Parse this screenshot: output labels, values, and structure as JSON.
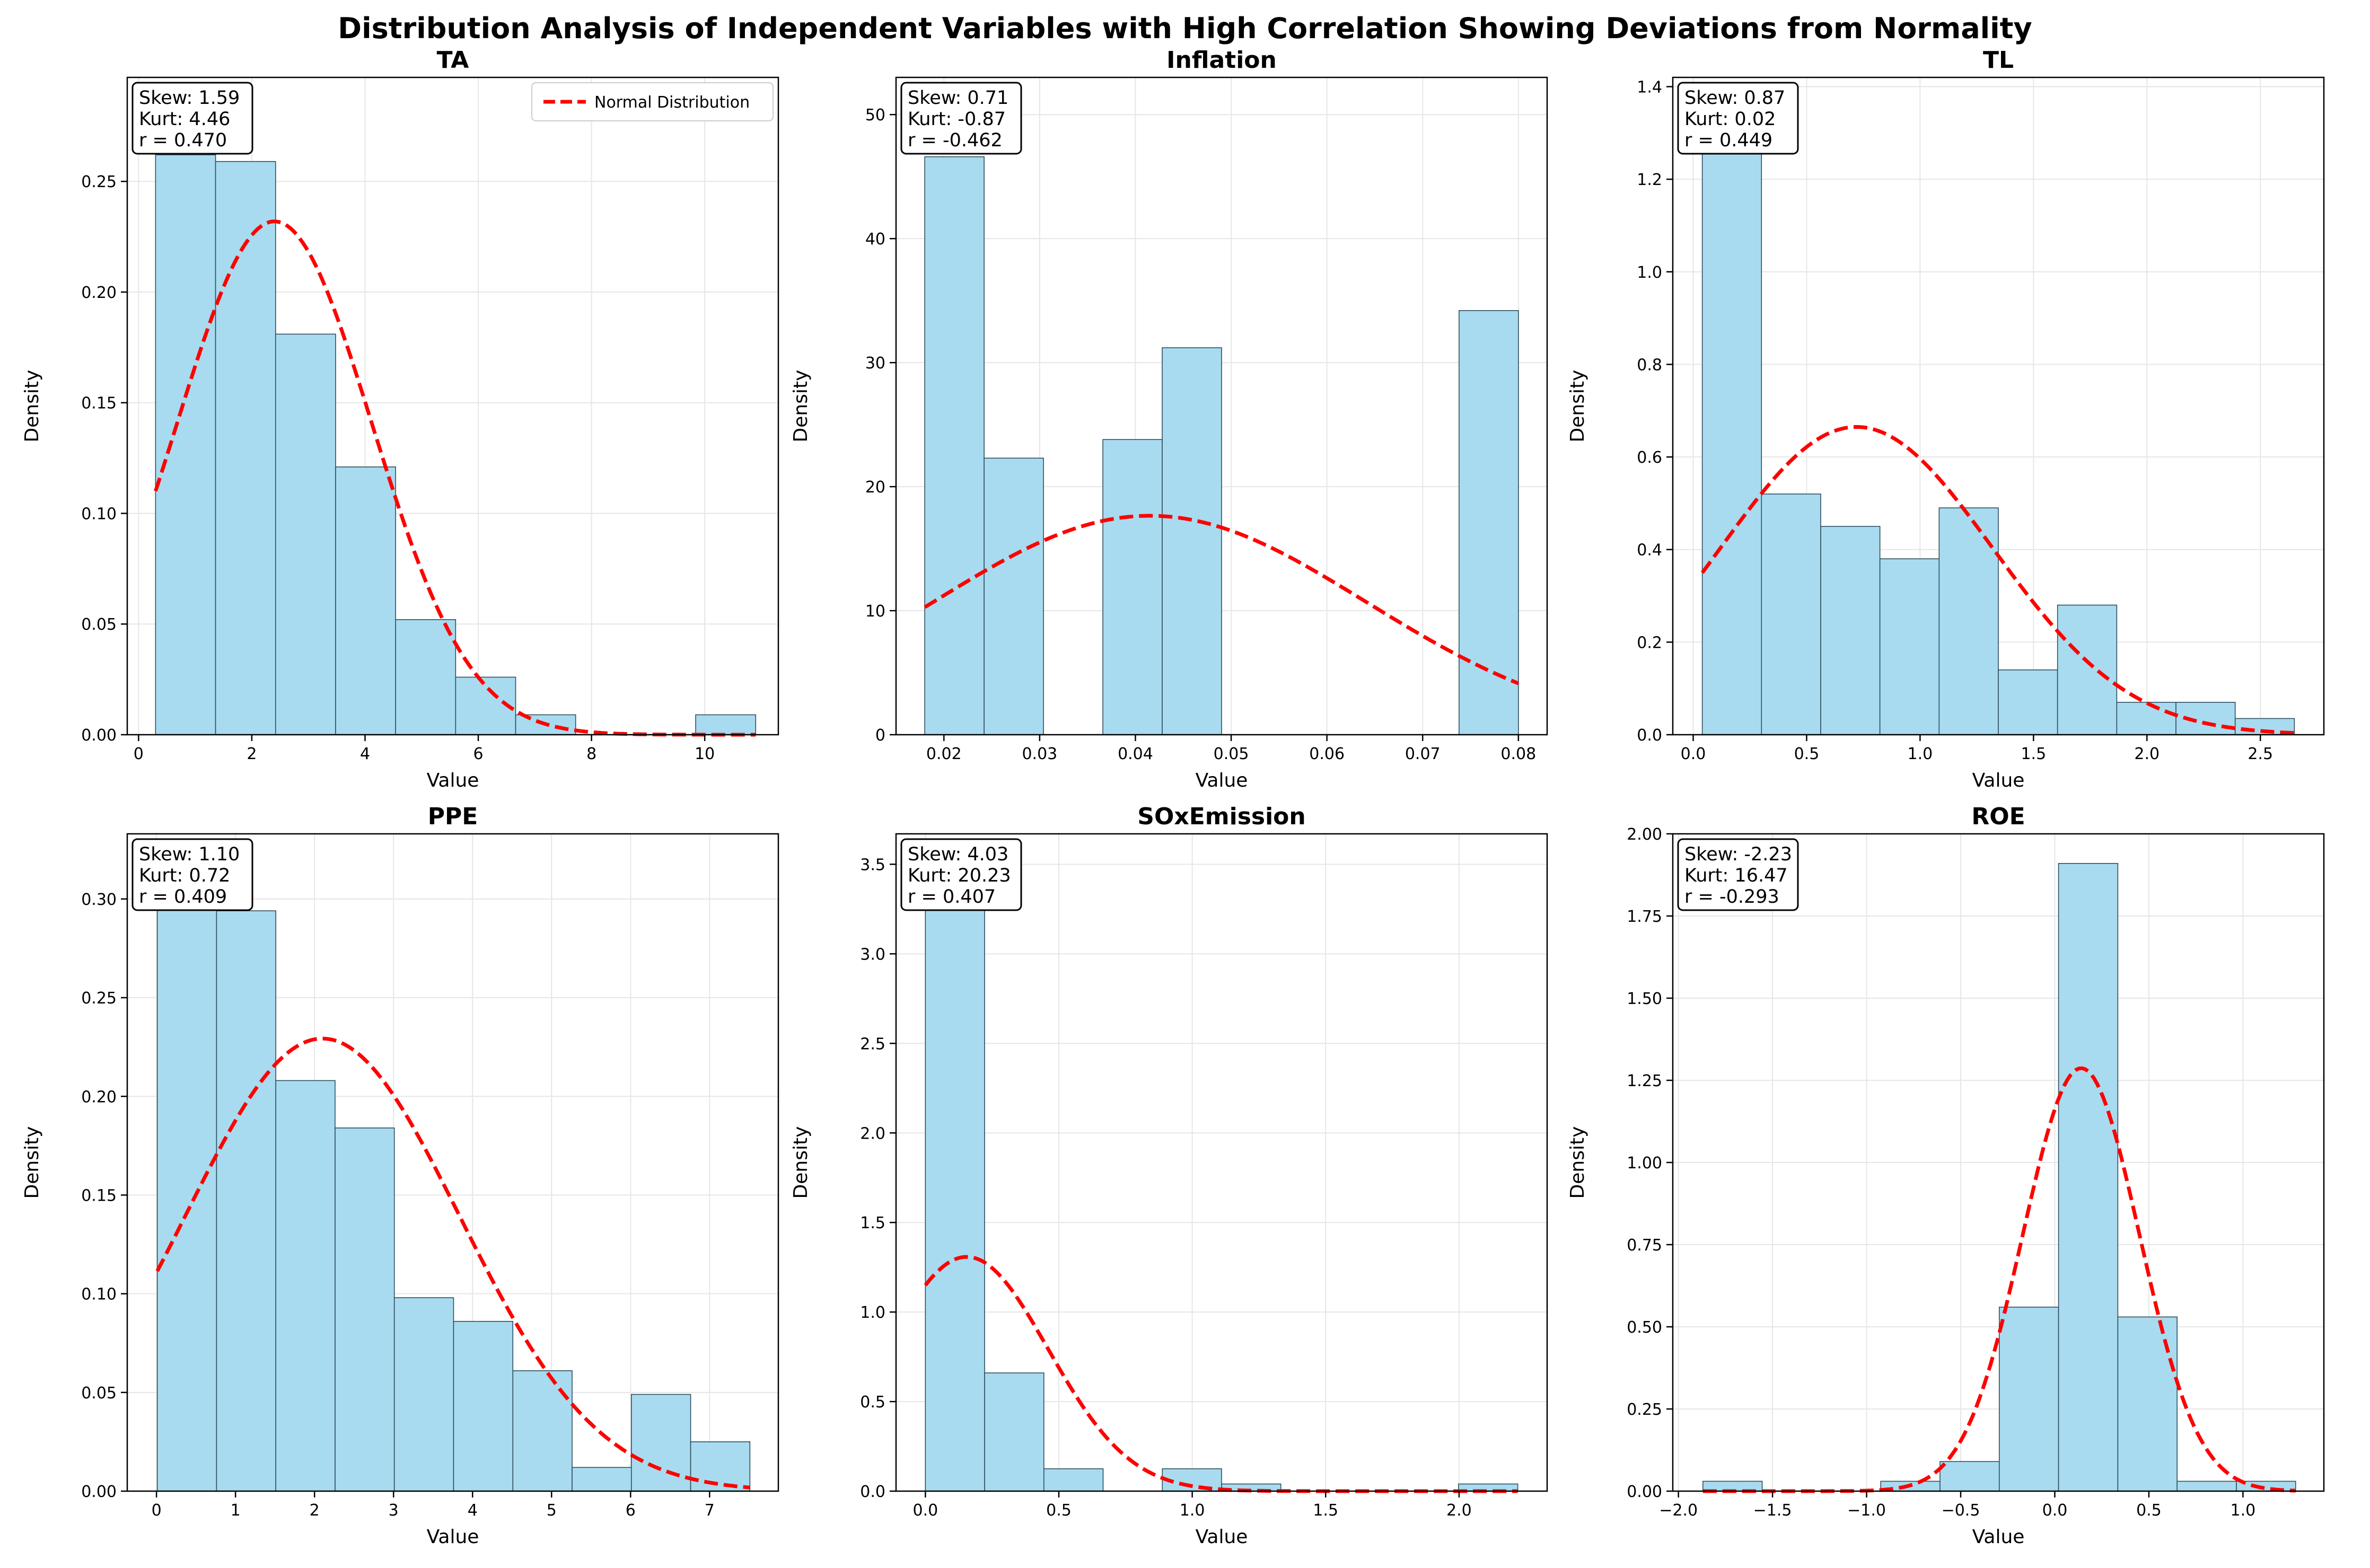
{
  "title": "Distribution Analysis of Independent Variables with High Correlation Showing Deviations from Normality",
  "colors": {
    "bar_fill": "#a8dbef",
    "bar_edge": "#2f4f5f",
    "normal_curve": "#ff0000",
    "grid": "#e6e6e6"
  },
  "legend": {
    "label": "Normal Distribution",
    "placement": "top-right",
    "panel": 0
  },
  "chart_data": [
    {
      "type": "bar",
      "title": "TA",
      "xlabel": "Value",
      "ylabel": "Density",
      "xlim": [
        -0.2,
        11.3
      ],
      "ylim": [
        0,
        0.297
      ],
      "xticks": [
        0,
        2,
        4,
        6,
        8,
        10
      ],
      "xtick_labels": [
        "0",
        "2",
        "4",
        "6",
        "8",
        "10"
      ],
      "yticks": [
        0,
        0.05,
        0.1,
        0.15,
        0.2,
        0.25
      ],
      "ytick_labels": [
        "0.00",
        "0.05",
        "0.10",
        "0.15",
        "0.20",
        "0.25"
      ],
      "bin_edges": [
        0.3,
        1.36,
        2.42,
        3.48,
        4.54,
        5.6,
        6.66,
        7.72,
        8.78,
        9.84,
        10.9
      ],
      "densities": [
        0.262,
        0.259,
        0.181,
        0.121,
        0.052,
        0.026,
        0.009,
        0,
        0,
        0.009
      ],
      "normal": {
        "mean": 2.4,
        "std": 1.72
      },
      "stats": {
        "skew": "Skew: 1.59",
        "kurt": "Kurt: 4.46",
        "r": "r = 0.470"
      }
    },
    {
      "type": "bar",
      "title": "Inflation",
      "xlabel": "Value",
      "ylabel": "Density",
      "xlim": [
        0.015,
        0.083
      ],
      "ylim": [
        0,
        53
      ],
      "xticks": [
        0.02,
        0.03,
        0.04,
        0.05,
        0.06,
        0.07,
        0.08
      ],
      "xtick_labels": [
        "0.02",
        "0.03",
        "0.04",
        "0.05",
        "0.06",
        "0.07",
        "0.08"
      ],
      "yticks": [
        0,
        10,
        20,
        30,
        40,
        50
      ],
      "ytick_labels": [
        "0",
        "10",
        "20",
        "30",
        "40",
        "50"
      ],
      "bin_edges": [
        0.018,
        0.0242,
        0.0304,
        0.0366,
        0.0428,
        0.049,
        0.0552,
        0.0614,
        0.0676,
        0.0738,
        0.08
      ],
      "densities": [
        46.6,
        22.3,
        0,
        23.8,
        31.2,
        0,
        0,
        0,
        0,
        34.2
      ],
      "normal": {
        "mean": 0.0415,
        "std": 0.0226
      },
      "stats": {
        "skew": "Skew: 0.71",
        "kurt": "Kurt: -0.87",
        "r": "r = -0.462"
      }
    },
    {
      "type": "bar",
      "title": "TL",
      "xlabel": "Value",
      "ylabel": "Density",
      "xlim": [
        -0.09,
        2.78
      ],
      "ylim": [
        0,
        1.42
      ],
      "xticks": [
        0,
        0.5,
        1,
        1.5,
        2,
        2.5
      ],
      "xtick_labels": [
        "0.0",
        "0.5",
        "1.0",
        "1.5",
        "2.0",
        "2.5"
      ],
      "yticks": [
        0,
        0.2,
        0.4,
        0.6,
        0.8,
        1,
        1.2,
        1.4
      ],
      "ytick_labels": [
        "0.0",
        "0.2",
        "0.4",
        "0.6",
        "0.8",
        "1.0",
        "1.2",
        "1.4"
      ],
      "bin_edges": [
        0.04,
        0.301,
        0.562,
        0.823,
        1.084,
        1.345,
        1.606,
        1.867,
        2.128,
        2.389,
        2.65
      ],
      "densities": [
        1.26,
        0.52,
        0.45,
        0.38,
        0.49,
        0.14,
        0.28,
        0.07,
        0.07,
        0.035
      ],
      "normal": {
        "mean": 0.72,
        "std": 0.6
      },
      "stats": {
        "skew": "Skew: 0.87",
        "kurt": "Kurt: 0.02",
        "r": "r = 0.449"
      }
    },
    {
      "type": "bar",
      "title": "PPE",
      "xlabel": "Value",
      "ylabel": "Density",
      "xlim": [
        -0.37,
        7.87
      ],
      "ylim": [
        0,
        0.333
      ],
      "xticks": [
        0,
        1,
        2,
        3,
        4,
        5,
        6,
        7
      ],
      "xtick_labels": [
        "0",
        "1",
        "2",
        "3",
        "4",
        "5",
        "6",
        "7"
      ],
      "yticks": [
        0,
        0.05,
        0.1,
        0.15,
        0.2,
        0.25,
        0.3
      ],
      "ytick_labels": [
        "0.00",
        "0.05",
        "0.10",
        "0.15",
        "0.20",
        "0.25",
        "0.30"
      ],
      "bin_edges": [
        0.01,
        0.76,
        1.51,
        2.26,
        3.01,
        3.76,
        4.51,
        5.26,
        6.01,
        6.76,
        7.51
      ],
      "densities": [
        0.301,
        0.294,
        0.208,
        0.184,
        0.098,
        0.086,
        0.061,
        0.012,
        0.049,
        0.025
      ],
      "normal": {
        "mean": 2.1,
        "std": 1.74
      },
      "stats": {
        "skew": "Skew: 1.10",
        "kurt": "Kurt: 0.72",
        "r": "r = 0.409"
      }
    },
    {
      "type": "bar",
      "title": "SOxEmission",
      "xlabel": "Value",
      "ylabel": "Density",
      "xlim": [
        -0.11,
        2.33
      ],
      "ylim": [
        0,
        3.67
      ],
      "xticks": [
        0,
        0.5,
        1,
        1.5,
        2
      ],
      "xtick_labels": [
        "0.0",
        "0.5",
        "1.0",
        "1.5",
        "2.0"
      ],
      "yticks": [
        0,
        0.5,
        1,
        1.5,
        2,
        2.5,
        3,
        3.5
      ],
      "ytick_labels": [
        "0.0",
        "0.5",
        "1.0",
        "1.5",
        "2.0",
        "2.5",
        "3.0",
        "3.5"
      ],
      "bin_edges": [
        0,
        0.222,
        0.444,
        0.666,
        0.888,
        1.11,
        1.332,
        1.554,
        1.776,
        1.998,
        2.22
      ],
      "densities": [
        3.4,
        0.66,
        0.125,
        0,
        0.125,
        0.04,
        0,
        0,
        0,
        0.04
      ],
      "normal": {
        "mean": 0.155,
        "std": 0.305
      },
      "stats": {
        "skew": "Skew: 4.03",
        "kurt": "Kurt: 20.23",
        "r": "r = 0.407"
      }
    },
    {
      "type": "bar",
      "title": "ROE",
      "xlabel": "Value",
      "ylabel": "Density",
      "xlim": [
        -2.03,
        1.43
      ],
      "ylim": [
        0,
        2.0
      ],
      "xticks": [
        -2,
        -1.5,
        -1,
        -0.5,
        0,
        0.5,
        1
      ],
      "xtick_labels": [
        "−2.0",
        "−1.5",
        "−1.0",
        "−0.5",
        "0.0",
        "0.5",
        "1.0"
      ],
      "yticks": [
        0,
        0.25,
        0.5,
        0.75,
        1,
        1.25,
        1.5,
        1.75,
        2
      ],
      "ytick_labels": [
        "0.00",
        "0.25",
        "0.50",
        "0.75",
        "1.00",
        "1.25",
        "1.50",
        "1.75",
        "2.00"
      ],
      "bin_edges": [
        -1.87,
        -1.555,
        -1.24,
        -0.925,
        -0.61,
        -0.295,
        0.02,
        0.335,
        0.65,
        0.965,
        1.28
      ],
      "densities": [
        0.03,
        0,
        0,
        0.03,
        0.09,
        0.56,
        1.91,
        0.53,
        0.03,
        0.03
      ],
      "normal": {
        "mean": 0.14,
        "std": 0.31
      },
      "stats": {
        "skew": "Skew: -2.23",
        "kurt": "Kurt: 16.47",
        "r": "r = -0.293"
      }
    }
  ]
}
